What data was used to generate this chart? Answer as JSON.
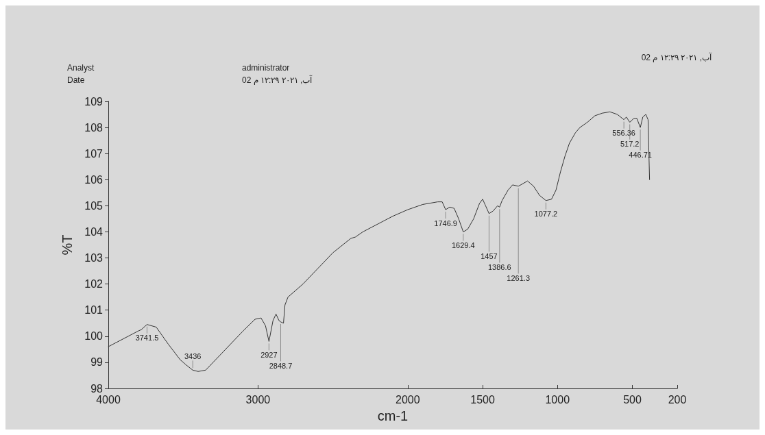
{
  "chart_data": {
    "type": "line",
    "xlabel": "cm-1",
    "ylabel": "%T",
    "x": [
      4000,
      3900,
      3800,
      3780,
      3741.5,
      3680,
      3600,
      3520,
      3480,
      3436,
      3400,
      3350,
      3300,
      3200,
      3100,
      3020,
      2980,
      2950,
      2927,
      2900,
      2880,
      2860,
      2848.7,
      2830,
      2820,
      2800,
      2700,
      2600,
      2500,
      2380,
      2350,
      2300,
      2200,
      2100,
      2000,
      1900,
      1800,
      1770,
      1746.9,
      1720,
      1690,
      1660,
      1629.4,
      1600,
      1560,
      1520,
      1500,
      1480,
      1457,
      1430,
      1400,
      1386.6,
      1370,
      1330,
      1300,
      1261.3,
      1230,
      1200,
      1160,
      1120,
      1077.2,
      1040,
      1010,
      980,
      950,
      920,
      880,
      850,
      800,
      750,
      700,
      650,
      600,
      556.36,
      540,
      517.2,
      490,
      470,
      446.71,
      430,
      410,
      395,
      385
    ],
    "series": [
      {
        "color": "#333333",
        "values": [
          99.6,
          99.9,
          100.2,
          100.25,
          100.45,
          100.35,
          99.7,
          99.1,
          98.9,
          98.7,
          98.65,
          98.7,
          99.0,
          99.6,
          100.2,
          100.65,
          100.7,
          100.4,
          99.8,
          100.6,
          100.85,
          100.6,
          100.55,
          100.5,
          101.2,
          101.5,
          102.0,
          102.6,
          103.2,
          103.75,
          103.8,
          104.0,
          104.3,
          104.6,
          104.85,
          105.05,
          105.15,
          105.15,
          104.85,
          104.95,
          104.9,
          104.5,
          104.0,
          104.1,
          104.5,
          105.1,
          105.25,
          105.0,
          104.7,
          104.8,
          105.0,
          104.95,
          105.2,
          105.6,
          105.8,
          105.75,
          105.85,
          105.95,
          105.75,
          105.4,
          105.2,
          105.25,
          105.6,
          106.3,
          106.9,
          107.4,
          107.8,
          108.0,
          108.2,
          108.45,
          108.55,
          108.6,
          108.5,
          108.3,
          108.4,
          108.2,
          108.35,
          108.35,
          108.0,
          108.4,
          108.5,
          108.3,
          106.0
        ]
      }
    ],
    "xlim": [
      4000,
      200
    ],
    "xticks": [
      4000,
      3000,
      2000,
      1500,
      1000,
      500,
      200
    ],
    "ylim": [
      98,
      109
    ],
    "yticks": [
      98,
      99,
      100,
      101,
      102,
      103,
      104,
      105,
      106,
      107,
      108,
      109
    ],
    "grid": false,
    "marker": "none",
    "line_style": "solid",
    "annotations": [
      "Analyst",
      "Date",
      "administrator",
      "آب, ٢٠٢١ ١٢:٢٩ م 02",
      "آب, ٢٠٢١ ١٢:٢٩ م 02",
      {
        "text": "3741.5",
        "x": 3741.5,
        "y": 100.45
      },
      {
        "text": "3436",
        "x": 3436,
        "y": 98.7
      },
      {
        "text": "2927",
        "x": 2927,
        "y": 99.8
      },
      {
        "text": "2848.7",
        "x": 2848.7,
        "y": 100.55
      },
      {
        "text": "1746.9",
        "x": 1746.9,
        "y": 104.85
      },
      {
        "text": "1629.4",
        "x": 1629.4,
        "y": 104.0
      },
      {
        "text": "1457",
        "x": 1457,
        "y": 104.7
      },
      {
        "text": "1386.6",
        "x": 1386.6,
        "y": 104.95
      },
      {
        "text": "1261.3",
        "x": 1261.3,
        "y": 105.75
      },
      {
        "text": "1077.2",
        "x": 1077.2,
        "y": 105.2
      },
      {
        "text": "556.36",
        "x": 556.36,
        "y": 108.3
      },
      {
        "text": "517.2",
        "x": 517.2,
        "y": 108.2
      },
      {
        "text": "446.71",
        "x": 446.71,
        "y": 108.0
      }
    ]
  }
}
